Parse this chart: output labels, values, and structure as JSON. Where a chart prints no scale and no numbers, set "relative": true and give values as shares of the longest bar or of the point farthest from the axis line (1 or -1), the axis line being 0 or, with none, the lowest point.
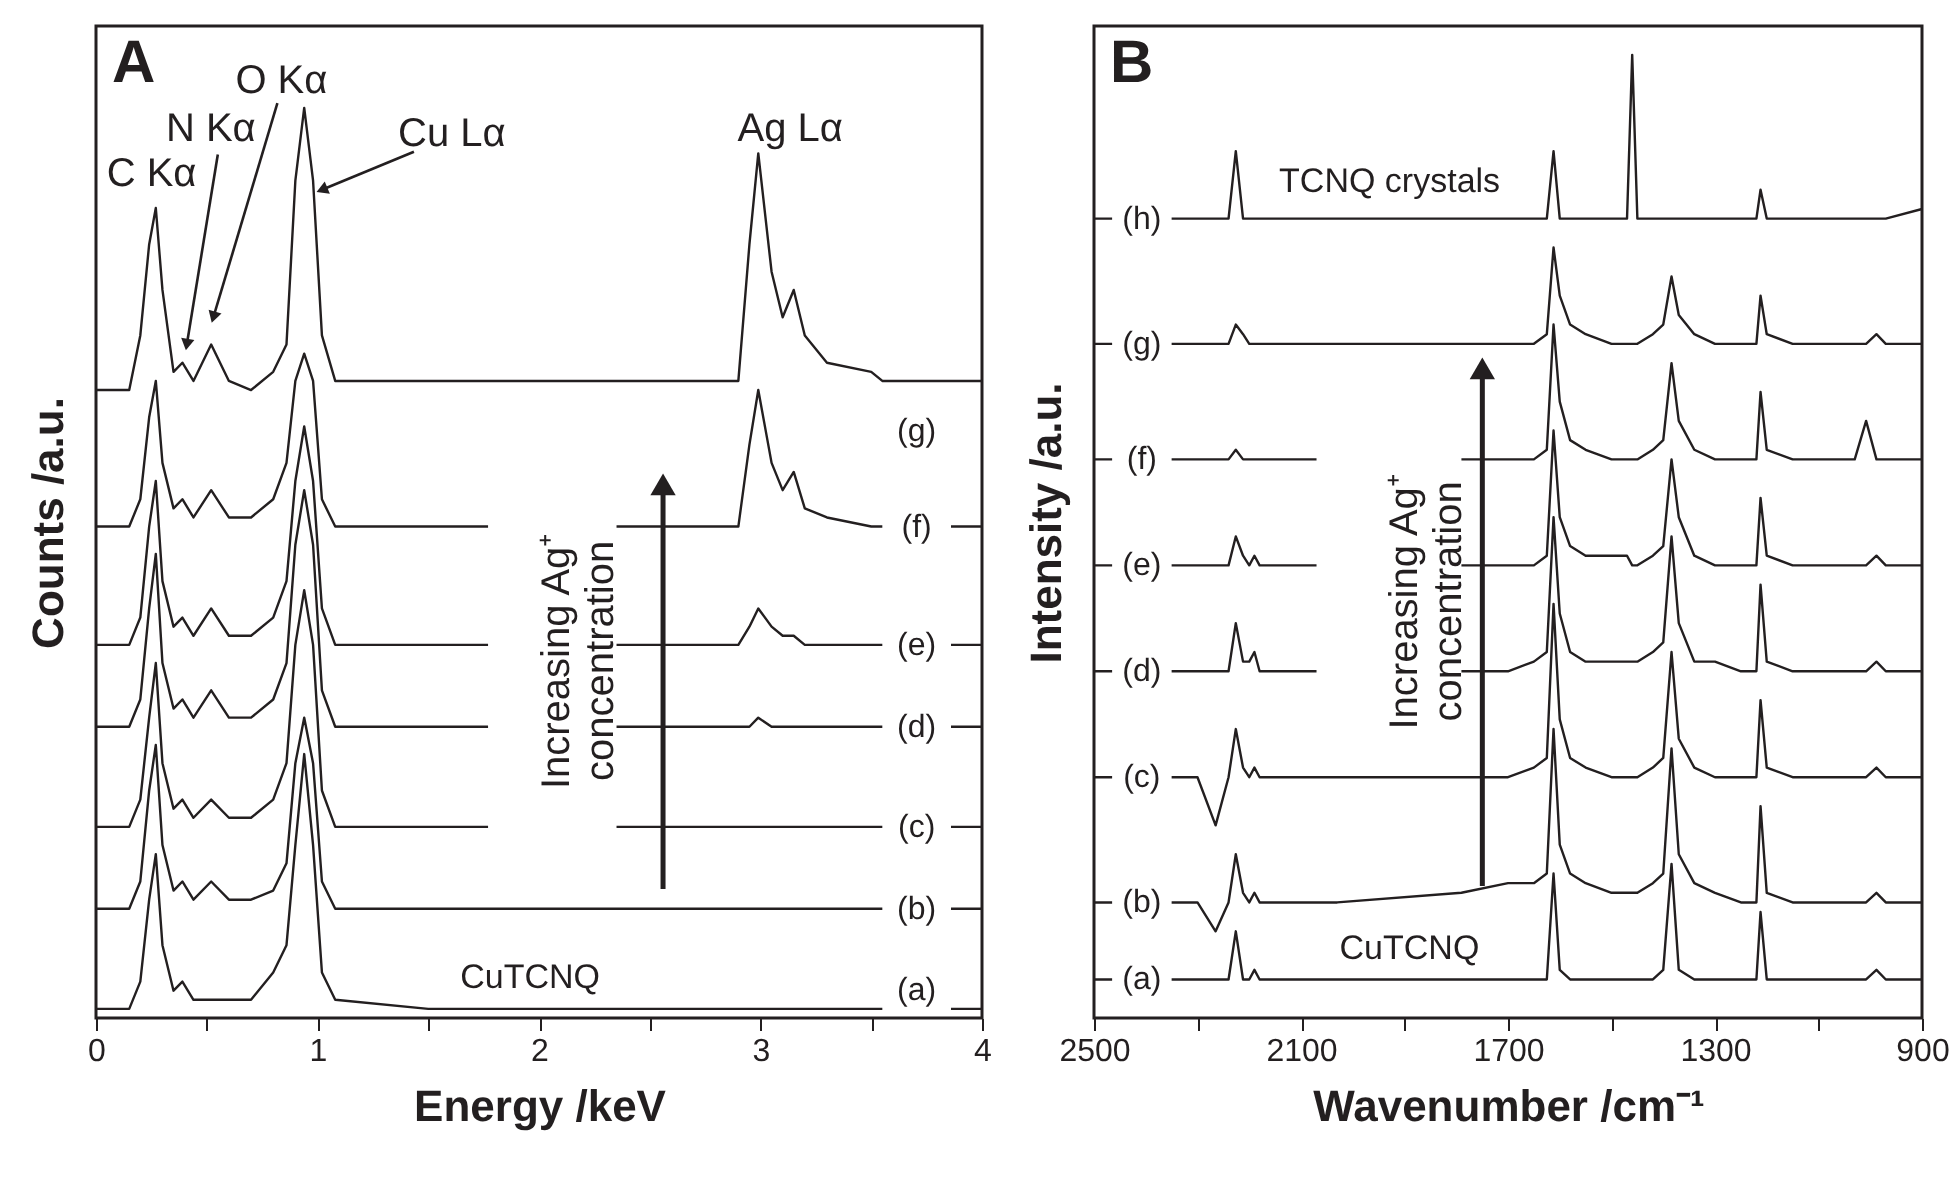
{
  "chart_data": [
    {
      "type": "line",
      "title": "A",
      "xlabel": "Energy /keV",
      "ylabel": "Counts /a.u.",
      "relative": true,
      "legend": "right",
      "xlim": [
        0,
        4
      ],
      "xticks": [
        0,
        {
          "value": 0.5,
          "label": null
        },
        1,
        {
          "value": 1.5,
          "label": null
        },
        2,
        {
          "value": 2.5,
          "label": null
        },
        3,
        {
          "value": 3.5,
          "label": null
        },
        4
      ],
      "x": [
        0,
        0.1,
        0.15,
        0.2,
        0.24,
        0.27,
        0.3,
        0.35,
        0.39,
        0.44,
        0.52,
        0.6,
        0.7,
        0.8,
        0.86,
        0.9,
        0.94,
        0.98,
        1.02,
        1.08,
        1.5,
        1.77,
        1.8,
        2.3,
        2.35,
        2.7,
        2.9,
        2.95,
        2.99,
        3.05,
        3.1,
        3.15,
        3.2,
        3.3,
        3.5,
        3.55,
        3.7,
        3.86,
        3.9,
        4.0
      ],
      "series": [
        {
          "name": "(a)",
          "color": "#231f20",
          "values": [
            0.01,
            0.01,
            0.01,
            0.04,
            0.13,
            0.18,
            0.08,
            0.03,
            0.04,
            0.02,
            0.02,
            0.02,
            0.02,
            0.05,
            0.08,
            0.19,
            0.29,
            0.19,
            0.05,
            0.02,
            0.01,
            0.01,
            0.01,
            0.01,
            0.01,
            0.01,
            0.01,
            0.01,
            0.01,
            0.01,
            0.01,
            0.01,
            0.01,
            0.01,
            0.01,
            0.01,
            null,
            0.01,
            0.01,
            0.01
          ]
        },
        {
          "name": "(b)",
          "color": "#231f20",
          "values": [
            0.12,
            0.12,
            0.12,
            0.15,
            0.25,
            0.3,
            0.19,
            0.14,
            0.15,
            0.13,
            0.15,
            0.13,
            0.13,
            0.14,
            0.17,
            0.28,
            0.33,
            0.28,
            0.15,
            0.12,
            0.12,
            0.12,
            0.12,
            0.12,
            0.12,
            0.12,
            0.12,
            0.12,
            0.12,
            0.12,
            0.12,
            0.12,
            0.12,
            0.12,
            0.12,
            0.12,
            null,
            0.12,
            0.12,
            0.12
          ]
        },
        {
          "name": "(c)",
          "color": "#231f20",
          "values": [
            0.21,
            0.21,
            0.21,
            0.24,
            0.33,
            0.39,
            0.28,
            0.23,
            0.24,
            0.22,
            0.24,
            0.22,
            0.22,
            0.24,
            0.28,
            0.41,
            0.47,
            0.41,
            0.25,
            0.21,
            0.21,
            0.21,
            null,
            null,
            0.21,
            0.21,
            0.21,
            0.21,
            0.21,
            0.21,
            0.21,
            0.21,
            0.21,
            0.21,
            0.21,
            0.21,
            null,
            0.21,
            0.21,
            0.21
          ]
        },
        {
          "name": "(d)",
          "color": "#231f20",
          "values": [
            0.32,
            0.32,
            0.32,
            0.35,
            0.45,
            0.51,
            0.39,
            0.34,
            0.35,
            0.33,
            0.36,
            0.33,
            0.33,
            0.35,
            0.39,
            0.52,
            0.58,
            0.52,
            0.36,
            0.32,
            0.32,
            0.32,
            null,
            null,
            0.32,
            0.32,
            0.32,
            0.32,
            0.33,
            0.32,
            0.32,
            0.32,
            0.32,
            0.32,
            0.32,
            0.32,
            null,
            0.32,
            0.32,
            0.32
          ]
        },
        {
          "name": "(e)",
          "color": "#231f20",
          "values": [
            0.41,
            0.41,
            0.41,
            0.44,
            0.54,
            0.59,
            0.48,
            0.43,
            0.44,
            0.42,
            0.45,
            0.42,
            0.42,
            0.44,
            0.48,
            0.59,
            0.65,
            0.59,
            0.45,
            0.41,
            0.41,
            0.41,
            null,
            null,
            0.41,
            0.41,
            0.41,
            0.43,
            0.45,
            0.43,
            0.42,
            0.42,
            0.41,
            0.41,
            0.41,
            0.41,
            null,
            0.41,
            0.41,
            0.41
          ]
        },
        {
          "name": "(f)",
          "color": "#231f20",
          "values": [
            0.54,
            0.54,
            0.54,
            0.57,
            0.66,
            0.7,
            0.61,
            0.56,
            0.57,
            0.55,
            0.58,
            0.55,
            0.55,
            0.57,
            0.61,
            0.7,
            0.73,
            0.7,
            0.57,
            0.54,
            0.54,
            0.54,
            null,
            null,
            0.54,
            0.54,
            0.54,
            0.63,
            0.69,
            0.61,
            0.58,
            0.6,
            0.56,
            0.55,
            0.54,
            0.54,
            null,
            0.54,
            0.54,
            0.54
          ]
        },
        {
          "name": "(g)",
          "color": "#231f20",
          "values": [
            0.69,
            0.69,
            0.69,
            0.75,
            0.85,
            0.89,
            0.8,
            0.71,
            0.72,
            0.7,
            0.74,
            0.7,
            0.69,
            0.71,
            0.74,
            0.92,
            1.0,
            0.92,
            0.75,
            0.7,
            0.7,
            0.7,
            0.7,
            0.7,
            0.7,
            0.7,
            0.7,
            0.85,
            0.95,
            0.82,
            0.77,
            0.8,
            0.75,
            0.72,
            0.71,
            0.7,
            0.7,
            0.7,
            0.7,
            0.7
          ]
        }
      ],
      "annotations": [
        {
          "text": "C Kα",
          "x": 0.26,
          "y": 0.89
        },
        {
          "text": "N Kα",
          "x": 0.41,
          "y": 0.74
        },
        {
          "text": "O Kα",
          "x": 0.53,
          "y": 0.77
        },
        {
          "text": "Cu Lα",
          "x": 1.02,
          "y": 0.91
        },
        {
          "text": "Ag Lα",
          "x": 2.99,
          "y": 0.95
        },
        "CuTCNQ",
        "Increasing Ag⁺ concentration"
      ]
    },
    {
      "type": "line",
      "title": "B",
      "xlabel": "Wavenumber /cm⁻¹",
      "ylabel": "Intensity /a.u.",
      "relative": true,
      "legend": "left",
      "xlim": [
        2500,
        900
      ],
      "xticks": [
        2500,
        {
          "value": 2300,
          "label": null
        },
        2100,
        {
          "value": 1900,
          "label": null
        },
        1700,
        {
          "value": 1500,
          "label": null
        },
        1300,
        {
          "value": 1100,
          "label": null
        },
        900
      ],
      "x": [
        2500,
        2465,
        2420,
        2350,
        2300,
        2265,
        2240,
        2226,
        2212,
        2200,
        2190,
        2180,
        2150,
        2070,
        2030,
        1790,
        1700,
        1650,
        1625,
        1612,
        1600,
        1580,
        1550,
        1500,
        1470,
        1460,
        1450,
        1420,
        1400,
        1384,
        1370,
        1340,
        1300,
        1250,
        1220,
        1212,
        1200,
        1150,
        1100,
        1030,
        1008,
        988,
        970,
        900
      ],
      "series": [
        {
          "name": "(a)",
          "color": "#231f20",
          "values": [
            0.04,
            0.04,
            null,
            0.04,
            0.04,
            0.04,
            0.04,
            0.09,
            0.04,
            0.04,
            0.05,
            0.04,
            0.04,
            0.04,
            0.04,
            0.04,
            0.04,
            0.04,
            0.04,
            0.15,
            0.05,
            0.04,
            0.04,
            0.04,
            0.04,
            0.04,
            0.04,
            0.04,
            0.05,
            0.16,
            0.05,
            0.04,
            0.04,
            0.04,
            0.04,
            0.11,
            0.04,
            0.04,
            0.04,
            0.04,
            0.04,
            0.05,
            0.04,
            0.04
          ]
        },
        {
          "name": "(b)",
          "color": "#231f20",
          "values": [
            0.12,
            0.12,
            null,
            0.12,
            0.12,
            0.09,
            0.12,
            0.17,
            0.13,
            0.12,
            0.13,
            0.12,
            0.12,
            0.12,
            0.12,
            0.13,
            0.14,
            0.14,
            0.15,
            0.3,
            0.18,
            0.15,
            0.14,
            0.13,
            0.13,
            0.13,
            0.13,
            0.14,
            0.15,
            0.28,
            0.17,
            0.14,
            0.13,
            0.12,
            0.12,
            0.22,
            0.13,
            0.12,
            0.12,
            0.12,
            0.12,
            0.13,
            0.12,
            0.12
          ]
        },
        {
          "name": "(c)",
          "color": "#231f20",
          "values": [
            0.25,
            0.25,
            null,
            0.25,
            0.25,
            0.2,
            0.25,
            0.3,
            0.26,
            0.25,
            0.26,
            0.25,
            0.25,
            0.25,
            0.25,
            0.25,
            0.25,
            0.26,
            0.27,
            0.43,
            0.31,
            0.27,
            0.26,
            0.25,
            0.25,
            0.25,
            0.25,
            0.26,
            0.27,
            0.38,
            0.29,
            0.26,
            0.25,
            0.25,
            0.25,
            0.33,
            0.26,
            0.25,
            0.25,
            0.25,
            0.25,
            0.26,
            0.25,
            0.25
          ]
        },
        {
          "name": "(d)",
          "color": "#231f20",
          "values": [
            0.36,
            0.36,
            null,
            0.36,
            0.36,
            0.36,
            0.36,
            0.41,
            0.37,
            0.37,
            0.38,
            0.36,
            0.36,
            0.36,
            null,
            0.36,
            0.36,
            0.37,
            0.38,
            0.52,
            0.42,
            0.38,
            0.37,
            0.37,
            0.37,
            0.37,
            0.37,
            0.38,
            0.39,
            0.5,
            0.41,
            0.37,
            0.37,
            0.36,
            0.36,
            0.45,
            0.37,
            0.36,
            0.36,
            0.36,
            0.36,
            0.37,
            0.36,
            0.36
          ]
        },
        {
          "name": "(e)",
          "color": "#231f20",
          "values": [
            0.47,
            0.47,
            null,
            0.47,
            0.47,
            0.47,
            0.47,
            0.5,
            0.48,
            0.47,
            0.48,
            0.47,
            0.47,
            0.47,
            null,
            0.47,
            0.47,
            0.47,
            0.48,
            0.61,
            0.52,
            0.49,
            0.48,
            0.48,
            0.48,
            0.47,
            0.47,
            0.48,
            0.49,
            0.58,
            0.52,
            0.48,
            0.47,
            0.47,
            0.47,
            0.54,
            0.48,
            0.47,
            0.47,
            0.47,
            0.47,
            0.48,
            0.47,
            0.47
          ]
        },
        {
          "name": "(f)",
          "color": "#231f20",
          "values": [
            0.58,
            0.58,
            null,
            0.58,
            0.58,
            0.58,
            0.58,
            0.59,
            0.58,
            0.58,
            0.58,
            0.58,
            0.58,
            0.58,
            null,
            0.58,
            0.58,
            0.58,
            0.59,
            0.72,
            0.64,
            0.6,
            0.59,
            0.58,
            0.58,
            0.58,
            0.58,
            0.59,
            0.6,
            0.68,
            0.62,
            0.59,
            0.58,
            0.58,
            0.58,
            0.65,
            0.59,
            0.58,
            0.58,
            0.58,
            0.62,
            0.58,
            0.58,
            0.58
          ]
        },
        {
          "name": "(g)",
          "color": "#231f20",
          "values": [
            0.7,
            0.7,
            null,
            0.7,
            0.7,
            0.7,
            0.7,
            0.72,
            0.71,
            0.7,
            0.7,
            0.7,
            0.7,
            0.7,
            0.7,
            0.7,
            0.7,
            0.7,
            0.71,
            0.8,
            0.75,
            0.72,
            0.71,
            0.7,
            0.7,
            0.7,
            0.7,
            0.71,
            0.72,
            0.77,
            0.73,
            0.71,
            0.7,
            0.7,
            0.7,
            0.75,
            0.71,
            0.7,
            0.7,
            0.7,
            0.7,
            0.71,
            0.7,
            0.7
          ]
        },
        {
          "name": "(h)",
          "color": "#231f20",
          "values": [
            0.83,
            0.83,
            null,
            0.83,
            0.83,
            0.83,
            0.83,
            0.9,
            0.83,
            0.83,
            0.83,
            0.83,
            0.83,
            0.83,
            0.83,
            0.83,
            0.83,
            0.83,
            0.83,
            0.9,
            0.83,
            0.83,
            0.83,
            0.83,
            0.83,
            1.0,
            0.83,
            0.83,
            0.83,
            0.83,
            0.83,
            0.83,
            0.83,
            0.83,
            0.83,
            0.86,
            0.83,
            0.83,
            0.83,
            0.83,
            0.83,
            0.83,
            0.83,
            0.84
          ]
        }
      ],
      "annotations": [
        "TCNQ crystals",
        "CuTCNQ",
        "Increasing Ag⁺ concentration"
      ]
    }
  ]
}
